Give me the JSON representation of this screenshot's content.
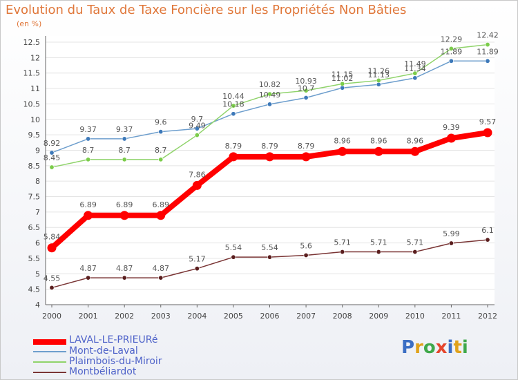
{
  "header": {
    "title": "Evolution du Taux de Taxe Foncière sur les Propriétés Non Bâties",
    "unit": "(en %)"
  },
  "logo": {
    "text": "Proxiti"
  },
  "chart_data": {
    "type": "line",
    "x": [
      "2000",
      "2001",
      "2002",
      "2003",
      "2004",
      "2005",
      "2006",
      "2007",
      "2008",
      "2009",
      "2010",
      "2011",
      "2012"
    ],
    "ylim": [
      4,
      12.5
    ],
    "yticks": [
      "4",
      "4.5",
      "5",
      "5.5",
      "6",
      "6.5",
      "7",
      "7.5",
      "8",
      "8.5",
      "9",
      "9.5",
      "10",
      "10.5",
      "11",
      "11.5",
      "12",
      "12.5"
    ],
    "grid": "horizontal",
    "legend_position": "bottom-left",
    "series": [
      {
        "name": "LAVAL-LE-PRIEURé",
        "color": "#ff0000",
        "values": [
          5.84,
          6.89,
          6.89,
          6.89,
          7.86,
          8.79,
          8.79,
          8.79,
          8.96,
          8.96,
          8.96,
          9.39,
          9.57
        ]
      },
      {
        "name": "Mont-de-Laval",
        "color": "#6d9ecd",
        "values": [
          8.92,
          9.37,
          9.37,
          9.6,
          9.7,
          10.18,
          10.49,
          10.7,
          11.02,
          11.13,
          11.34,
          11.89,
          11.89
        ]
      },
      {
        "name": "Plaimbois-du-Miroir",
        "color": "#8fd36a",
        "values": [
          8.45,
          8.7,
          8.7,
          8.7,
          9.49,
          10.44,
          10.82,
          10.93,
          11.15,
          11.26,
          11.49,
          12.29,
          12.42
        ]
      },
      {
        "name": "Montbéliardot",
        "color": "#7a3535",
        "values": [
          4.55,
          4.87,
          4.87,
          4.87,
          5.17,
          5.54,
          5.54,
          5.6,
          5.71,
          5.71,
          5.71,
          5.99,
          6.1
        ]
      }
    ]
  }
}
